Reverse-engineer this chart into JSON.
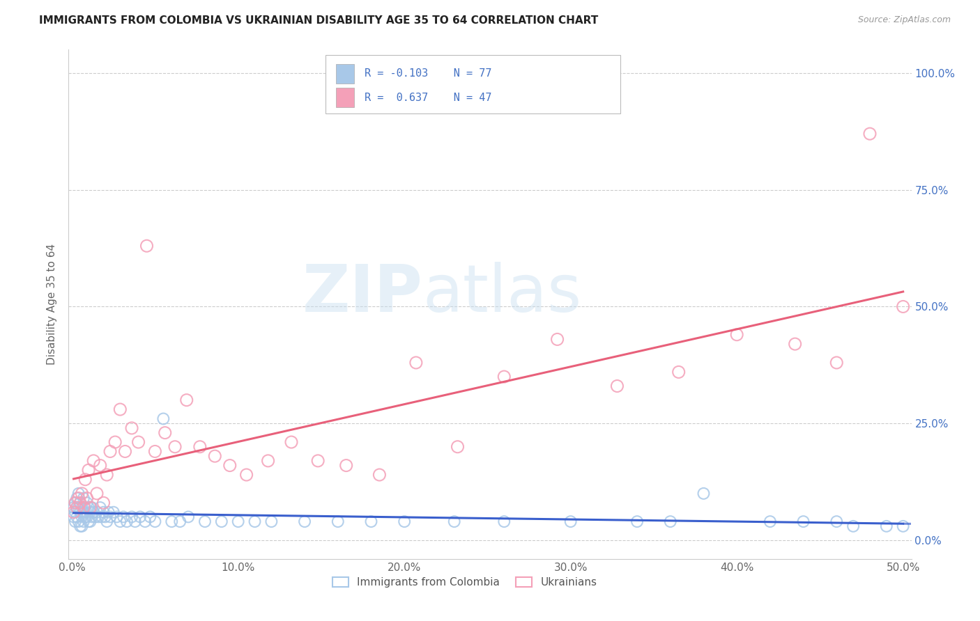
{
  "title": "IMMIGRANTS FROM COLOMBIA VS UKRAINIAN DISABILITY AGE 35 TO 64 CORRELATION CHART",
  "source": "Source: ZipAtlas.com",
  "ylabel_label": "Disability Age 35 to 64",
  "x_tick_labels": [
    "0.0%",
    "10.0%",
    "20.0%",
    "30.0%",
    "40.0%",
    "50.0%"
  ],
  "x_tick_positions": [
    0.0,
    0.1,
    0.2,
    0.3,
    0.4,
    0.5
  ],
  "y_tick_labels": [
    "0.0%",
    "25.0%",
    "50.0%",
    "75.0%",
    "100.0%"
  ],
  "y_tick_positions": [
    0.0,
    0.25,
    0.5,
    0.75,
    1.0
  ],
  "xlim": [
    -0.002,
    0.505
  ],
  "ylim": [
    -0.04,
    1.05
  ],
  "colombia_color": "#a8c8e8",
  "ukraine_color": "#f4a0b8",
  "colombia_line_color": "#3a5fcd",
  "ukraine_line_color": "#e8607a",
  "colombia_R": -0.103,
  "colombia_N": 77,
  "ukraine_R": 0.637,
  "ukraine_N": 47,
  "legend_labels": [
    "Immigrants from Colombia",
    "Ukrainians"
  ],
  "watermark_zip": "ZIP",
  "watermark_atlas": "atlas",
  "colombia_x": [
    0.001,
    0.001,
    0.002,
    0.002,
    0.002,
    0.003,
    0.003,
    0.003,
    0.004,
    0.004,
    0.004,
    0.005,
    0.005,
    0.005,
    0.006,
    0.006,
    0.006,
    0.007,
    0.007,
    0.007,
    0.008,
    0.008,
    0.009,
    0.009,
    0.01,
    0.01,
    0.011,
    0.011,
    0.012,
    0.012,
    0.013,
    0.014,
    0.015,
    0.016,
    0.017,
    0.018,
    0.019,
    0.02,
    0.021,
    0.022,
    0.023,
    0.025,
    0.027,
    0.029,
    0.031,
    0.033,
    0.036,
    0.038,
    0.041,
    0.044,
    0.047,
    0.05,
    0.055,
    0.06,
    0.065,
    0.07,
    0.08,
    0.09,
    0.1,
    0.11,
    0.12,
    0.14,
    0.16,
    0.18,
    0.2,
    0.23,
    0.26,
    0.3,
    0.34,
    0.36,
    0.38,
    0.42,
    0.44,
    0.46,
    0.47,
    0.49,
    0.5
  ],
  "colombia_y": [
    0.07,
    0.05,
    0.08,
    0.06,
    0.04,
    0.09,
    0.07,
    0.05,
    0.1,
    0.07,
    0.04,
    0.08,
    0.06,
    0.03,
    0.07,
    0.05,
    0.03,
    0.09,
    0.06,
    0.04,
    0.07,
    0.05,
    0.08,
    0.05,
    0.07,
    0.04,
    0.06,
    0.04,
    0.07,
    0.05,
    0.06,
    0.05,
    0.06,
    0.05,
    0.07,
    0.05,
    0.06,
    0.05,
    0.04,
    0.06,
    0.05,
    0.06,
    0.05,
    0.04,
    0.05,
    0.04,
    0.05,
    0.04,
    0.05,
    0.04,
    0.05,
    0.04,
    0.26,
    0.04,
    0.04,
    0.05,
    0.04,
    0.04,
    0.04,
    0.04,
    0.04,
    0.04,
    0.04,
    0.04,
    0.04,
    0.04,
    0.04,
    0.04,
    0.04,
    0.04,
    0.1,
    0.04,
    0.04,
    0.04,
    0.03,
    0.03,
    0.03
  ],
  "ukraine_x": [
    0.001,
    0.002,
    0.003,
    0.004,
    0.005,
    0.006,
    0.007,
    0.008,
    0.009,
    0.01,
    0.011,
    0.013,
    0.015,
    0.017,
    0.019,
    0.021,
    0.023,
    0.026,
    0.029,
    0.032,
    0.036,
    0.04,
    0.045,
    0.05,
    0.056,
    0.062,
    0.069,
    0.077,
    0.086,
    0.095,
    0.105,
    0.118,
    0.132,
    0.148,
    0.165,
    0.185,
    0.207,
    0.232,
    0.26,
    0.292,
    0.328,
    0.365,
    0.4,
    0.435,
    0.46,
    0.48,
    0.5
  ],
  "ukraine_y": [
    0.06,
    0.08,
    0.07,
    0.09,
    0.08,
    0.1,
    0.07,
    0.13,
    0.09,
    0.15,
    0.07,
    0.17,
    0.1,
    0.16,
    0.08,
    0.14,
    0.19,
    0.21,
    0.28,
    0.19,
    0.24,
    0.21,
    0.63,
    0.19,
    0.23,
    0.2,
    0.3,
    0.2,
    0.18,
    0.16,
    0.14,
    0.17,
    0.21,
    0.17,
    0.16,
    0.14,
    0.38,
    0.2,
    0.35,
    0.43,
    0.33,
    0.36,
    0.44,
    0.42,
    0.38,
    0.87,
    0.5
  ]
}
